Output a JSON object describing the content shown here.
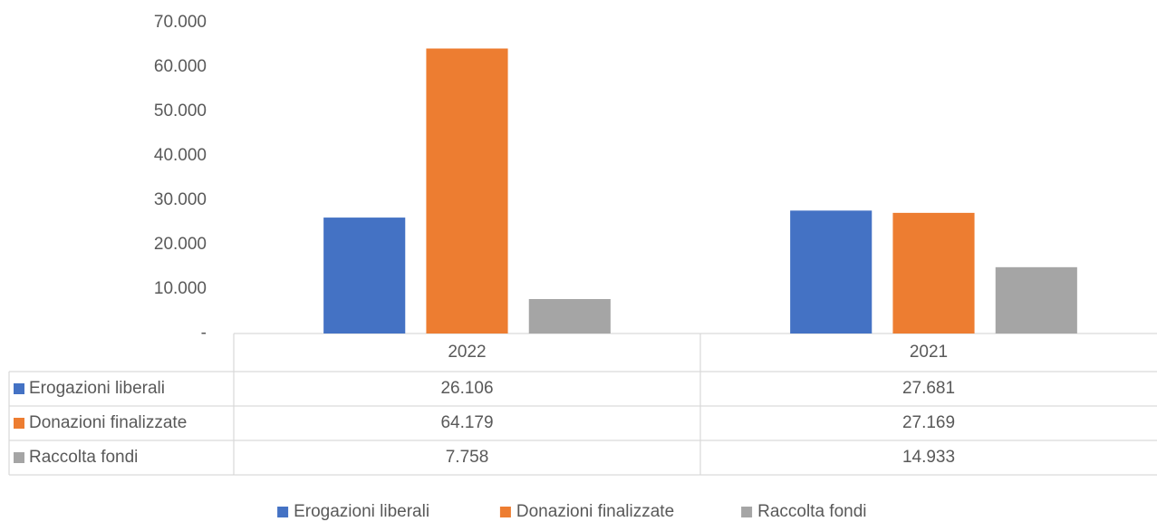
{
  "chart_data": {
    "type": "bar",
    "categories": [
      "2022",
      "2021"
    ],
    "series": [
      {
        "name": "Erogazioni liberali",
        "color": "#4472c4",
        "values": [
          26106,
          27681
        ],
        "value_labels": [
          "26.106",
          "27.681"
        ]
      },
      {
        "name": "Donazioni finalizzate",
        "color": "#ed7d31",
        "values": [
          64179,
          27169
        ],
        "value_labels": [
          "64.179",
          "27.169"
        ]
      },
      {
        "name": "Raccolta fondi",
        "color": "#a5a5a5",
        "values": [
          7758,
          14933
        ],
        "value_labels": [
          "7.758",
          "14.933"
        ]
      }
    ],
    "ylim": [
      0,
      70000
    ],
    "yticks": [
      {
        "value": 0,
        "label": "-"
      },
      {
        "value": 10000,
        "label": "10.000"
      },
      {
        "value": 20000,
        "label": "20.000"
      },
      {
        "value": 30000,
        "label": "30.000"
      },
      {
        "value": 40000,
        "label": "40.000"
      },
      {
        "value": 50000,
        "label": "50.000"
      },
      {
        "value": 60000,
        "label": "60.000"
      },
      {
        "value": 70000,
        "label": "70.000"
      }
    ],
    "grid": false,
    "legend": "bottom"
  }
}
